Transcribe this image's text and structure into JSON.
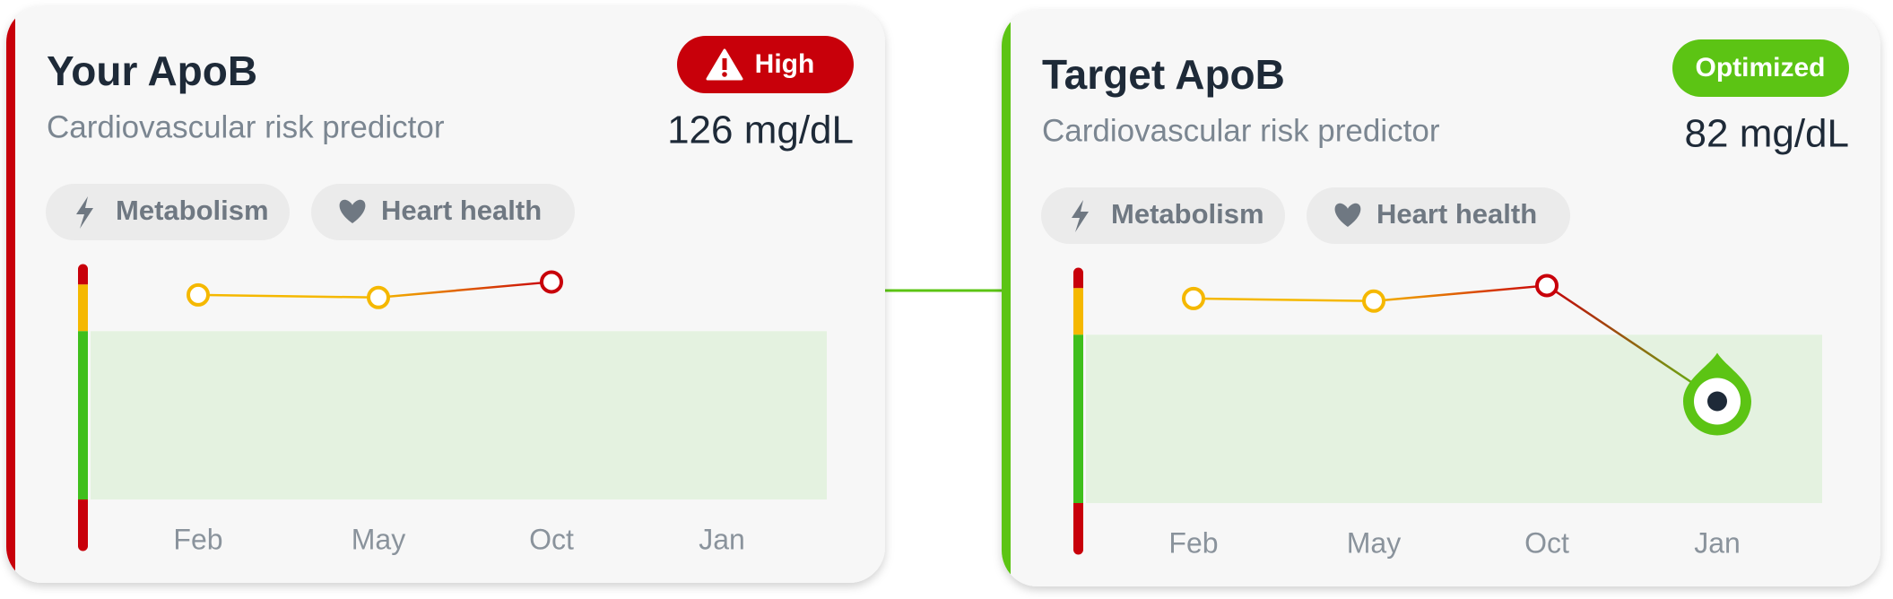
{
  "cards": [
    {
      "title": "Your ApoB",
      "subtitle": "Cardiovascular risk predictor",
      "badge": "High",
      "badge_color": "#c8000a",
      "accent_color": "#c8000a",
      "value": "126 mg/dL",
      "tags": [
        "Metabolism",
        "Heart health"
      ],
      "chart": {
        "categories": [
          "Feb",
          "May",
          "Oct",
          "Jan"
        ],
        "values": [
          121,
          120,
          126,
          null
        ],
        "ylim": [
          24,
          131
        ],
        "zones": [
          {
            "from": 125,
            "to": 131,
            "color": "#c8000a"
          },
          {
            "from": 107,
            "to": 125,
            "color": "#f5b800"
          },
          {
            "from": 42,
            "to": 107,
            "color": "#3fbf1c"
          },
          {
            "from": 24,
            "to": 42,
            "color": "#c8000a"
          }
        ]
      }
    },
    {
      "title": "Target ApoB",
      "subtitle": "Cardiovascular risk predictor",
      "badge": "Optimized",
      "badge_color": "#5cc414",
      "accent_color": "#5cc414",
      "value": "82 mg/dL",
      "tags": [
        "Metabolism",
        "Heart health"
      ],
      "chart": {
        "categories": [
          "Feb",
          "May",
          "Oct",
          "Jan"
        ],
        "values": [
          121,
          120,
          126,
          82
        ],
        "target_index": 3,
        "ylim": [
          24,
          131
        ],
        "zones": [
          {
            "from": 125,
            "to": 131,
            "color": "#c8000a"
          },
          {
            "from": 107,
            "to": 125,
            "color": "#f5b800"
          },
          {
            "from": 42,
            "to": 107,
            "color": "#3fbf1c"
          },
          {
            "from": 24,
            "to": 42,
            "color": "#c8000a"
          }
        ]
      }
    }
  ]
}
